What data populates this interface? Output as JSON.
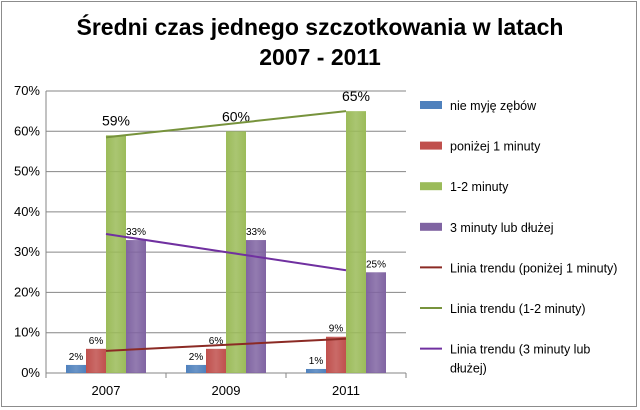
{
  "chart_data": {
    "type": "bar",
    "title_line1": "Średni czas jednego szczotkowania w latach",
    "title_line2": "2007 - 2011",
    "categories": [
      "2007",
      "2009",
      "2011"
    ],
    "ylim": [
      0,
      70
    ],
    "yticks": [
      "0%",
      "10%",
      "20%",
      "30%",
      "40%",
      "50%",
      "60%",
      "70%"
    ],
    "series": [
      {
        "name": "nie myję zębów",
        "color": "#4f81bd",
        "values": [
          2,
          2,
          1
        ],
        "labels": [
          "2%",
          "2%",
          "1%"
        ]
      },
      {
        "name": "poniżej 1 minuty",
        "color": "#c0504d",
        "values": [
          6,
          6,
          9
        ],
        "labels": [
          "6%",
          "6%",
          "9%"
        ]
      },
      {
        "name": "1-2 minuty",
        "color": "#9bbb59",
        "values": [
          59,
          60,
          65
        ],
        "labels": [
          "59%",
          "60%",
          "65%"
        ]
      },
      {
        "name": "3 minuty lub dłużej",
        "color": "#8064a2",
        "values": [
          33,
          33,
          25
        ],
        "labels": [
          "33%",
          "33%",
          "25%"
        ]
      }
    ],
    "trendlines": [
      {
        "name": "Linia trendu (poniżej 1 minuty)",
        "color": "#8b2a24",
        "start": 5.5,
        "end": 8.5
      },
      {
        "name": "Linia trendu (1-2 minuty)",
        "color": "#77933c",
        "start": 58.5,
        "end": 65
      },
      {
        "name": "Linia trendu (3 minuty lub dłużej)",
        "color": "#7030a0",
        "start": 34.5,
        "end": 25.5
      }
    ],
    "legend_lines": [
      [
        "nie myję zębów"
      ],
      [
        "poniżej 1 minuty"
      ],
      [
        "1-2 minuty"
      ],
      [
        "3 minuty lub dłużej"
      ],
      [
        "Linia trendu (poniżej 1 minuty)"
      ],
      [
        "Linia trendu (1-2 minuty)"
      ],
      [
        "Linia trendu (3 minuty lub",
        "dłużej)"
      ]
    ]
  }
}
